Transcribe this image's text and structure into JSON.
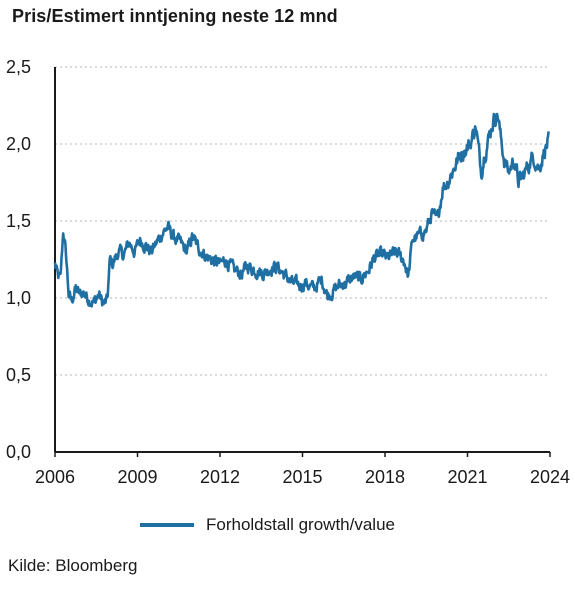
{
  "title": "Pris/Estimert inntjening neste 12 mnd",
  "source": "Kilde: Bloomberg",
  "colors": {
    "series": "#1f6fa3",
    "axis": "#1a1a1a",
    "grid": "#b5b5b5"
  },
  "chart_data": {
    "type": "line",
    "title": "Pris/Estimert inntjening neste 12 mnd",
    "xlabel": "",
    "ylabel": "",
    "xlim": [
      2006,
      2024
    ],
    "ylim": [
      0,
      2.5
    ],
    "x_ticks": [
      2006,
      2009,
      2012,
      2015,
      2018,
      2021,
      2024
    ],
    "x_tick_labels": [
      "2006",
      "2009",
      "2012",
      "2015",
      "2018",
      "2021",
      "2024"
    ],
    "y_ticks": [
      0,
      0.5,
      1.0,
      1.5,
      2.0,
      2.5
    ],
    "y_tick_labels": [
      "0,0",
      "0,5",
      "1,0",
      "1,5",
      "2,0",
      "2,5"
    ],
    "grid": "horizontal dashed",
    "legend_position": "bottom",
    "series": [
      {
        "name": "Forholdstall growth/value",
        "x": [
          2006.0,
          2006.1,
          2006.2,
          2006.3,
          2006.4,
          2006.5,
          2006.6,
          2006.75,
          2006.9,
          2007.0,
          2007.2,
          2007.4,
          2007.6,
          2007.75,
          2007.9,
          2008.0,
          2008.1,
          2008.3,
          2008.5,
          2008.7,
          2008.9,
          2009.1,
          2009.3,
          2009.5,
          2009.7,
          2009.9,
          2010.1,
          2010.25,
          2010.4,
          2010.6,
          2010.8,
          2011.0,
          2011.2,
          2011.4,
          2011.6,
          2011.8,
          2012.0,
          2012.2,
          2012.5,
          2012.8,
          2013.0,
          2013.3,
          2013.6,
          2013.9,
          2014.1,
          2014.3,
          2014.6,
          2014.9,
          2015.1,
          2015.4,
          2015.7,
          2015.9,
          2016.1,
          2016.3,
          2016.6,
          2016.9,
          2017.1,
          2017.4,
          2017.6,
          2017.9,
          2018.1,
          2018.4,
          2018.7,
          2018.85,
          2019.0,
          2019.2,
          2019.5,
          2019.7,
          2019.9,
          2020.1,
          2020.3,
          2020.5,
          2020.7,
          2020.9,
          2021.1,
          2021.3,
          2021.5,
          2021.6,
          2021.8,
          2021.95,
          2022.1,
          2022.2,
          2022.35,
          2022.5,
          2022.7,
          2022.85,
          2023.0,
          2023.2,
          2023.4,
          2023.6,
          2023.8,
          2023.95
        ],
        "y": [
          1.22,
          1.14,
          1.12,
          1.44,
          1.28,
          1.02,
          0.98,
          1.06,
          1.02,
          1.04,
          1.0,
          0.97,
          1.02,
          0.96,
          0.98,
          1.25,
          1.22,
          1.3,
          1.28,
          1.36,
          1.3,
          1.38,
          1.34,
          1.3,
          1.36,
          1.42,
          1.46,
          1.41,
          1.38,
          1.35,
          1.3,
          1.4,
          1.33,
          1.29,
          1.26,
          1.24,
          1.22,
          1.25,
          1.18,
          1.16,
          1.21,
          1.18,
          1.16,
          1.2,
          1.2,
          1.16,
          1.1,
          1.08,
          1.1,
          1.06,
          1.12,
          1.02,
          1.04,
          1.08,
          1.1,
          1.14,
          1.12,
          1.18,
          1.26,
          1.28,
          1.26,
          1.3,
          1.24,
          1.14,
          1.38,
          1.4,
          1.44,
          1.55,
          1.5,
          1.72,
          1.76,
          1.84,
          1.92,
          1.96,
          2.0,
          2.12,
          1.82,
          1.92,
          2.06,
          2.16,
          2.2,
          2.05,
          1.88,
          1.82,
          1.9,
          1.76,
          1.78,
          1.86,
          1.92,
          1.84,
          1.96,
          2.02
        ]
      }
    ]
  }
}
